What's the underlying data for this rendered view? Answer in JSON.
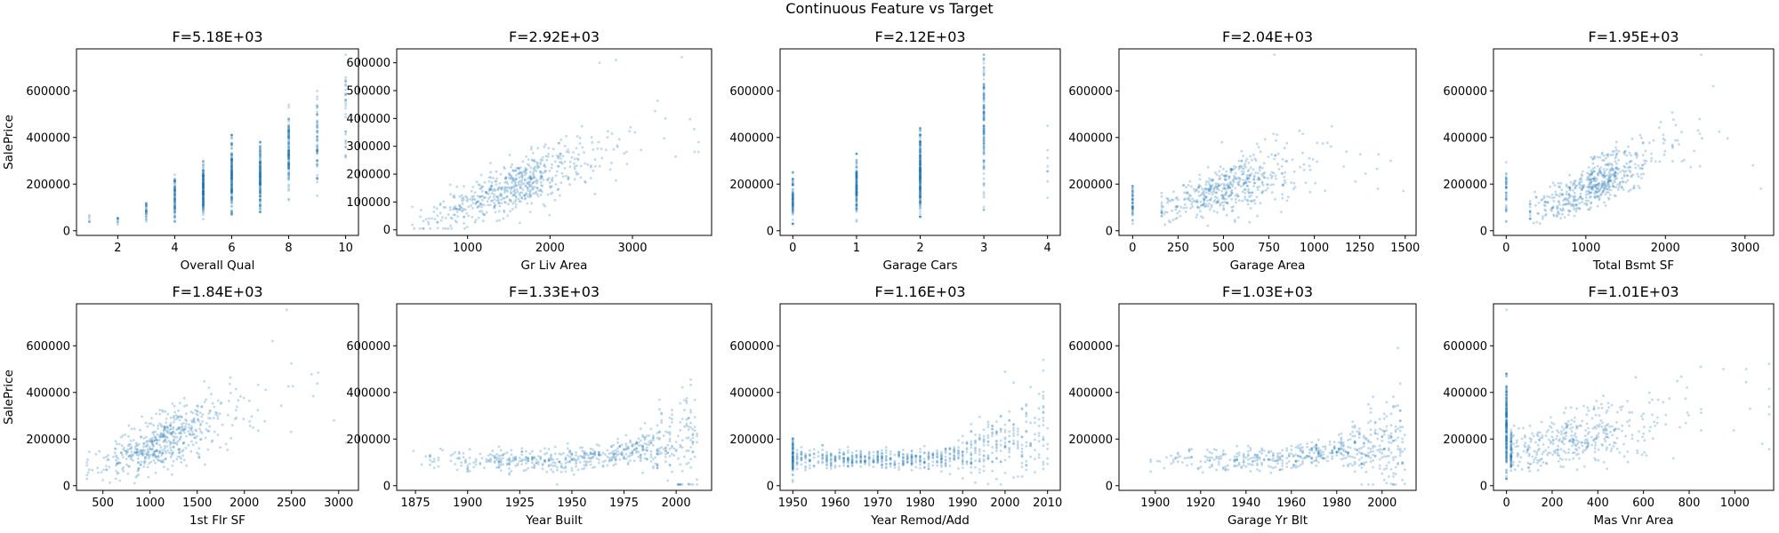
{
  "figure_title": "Continuous Feature vs Target",
  "colors": {
    "points": "#1f77b4",
    "frame": "#000000"
  },
  "chart_data": [
    {
      "type": "scatter",
      "title": "F=5.18E+03",
      "xlabel": "Overall Qual",
      "ylabel": "SalePrice",
      "xlim": [
        0.55,
        10.45
      ],
      "ylim": [
        -20000,
        780000
      ],
      "xticks": [
        2,
        4,
        6,
        8,
        10
      ],
      "xtick_labels": [
        "2",
        "4",
        "6",
        "8",
        "10"
      ],
      "yticks": [
        0,
        200000,
        400000,
        600000
      ],
      "ytick_labels": [
        "0",
        "200000",
        "400000",
        "600000"
      ],
      "kind": "categorical",
      "groups": [
        {
          "x": 1,
          "min": 10000,
          "max": 80000,
          "n": 6
        },
        {
          "x": 2,
          "min": 25000,
          "max": 75000,
          "n": 10
        },
        {
          "x": 3,
          "min": 40000,
          "max": 140000,
          "n": 30
        },
        {
          "x": 4,
          "min": 30000,
          "max": 250000,
          "n": 90
        },
        {
          "x": 5,
          "min": 50000,
          "max": 300000,
          "n": 180
        },
        {
          "x": 6,
          "min": 70000,
          "max": 410000,
          "n": 180
        },
        {
          "x": 7,
          "min": 80000,
          "max": 380000,
          "n": 170
        },
        {
          "x": 8,
          "min": 120000,
          "max": 540000,
          "n": 130
        },
        {
          "x": 9,
          "min": 150000,
          "max": 610000,
          "n": 60
        },
        {
          "x": 10,
          "min": 160000,
          "max": 755000,
          "n": 30
        }
      ]
    },
    {
      "type": "scatter",
      "title": "F=2.92E+03",
      "xlabel": "Gr Liv Area",
      "ylabel": "",
      "xlim": [
        140,
        3960
      ],
      "ylim": [
        -20000,
        650000
      ],
      "xticks": [
        1000,
        2000,
        3000
      ],
      "xtick_labels": [
        "1000",
        "2000",
        "3000"
      ],
      "yticks": [
        0,
        100000,
        200000,
        300000,
        400000,
        500000,
        600000
      ],
      "ytick_labels": [
        "0",
        "100000",
        "200000",
        "300000",
        "400000",
        "500000",
        "600000"
      ],
      "kind": "cloud",
      "a": -20000,
      "b": 112,
      "x_center": 1500,
      "x_spread": 480,
      "x_min": 330,
      "x_max": 3800,
      "y_noise": 45000,
      "n": 600,
      "outliers": [
        [
          3600,
          620000
        ],
        [
          3800,
          280000
        ],
        [
          3400,
          400000
        ],
        [
          2800,
          610000
        ],
        [
          2600,
          600000
        ]
      ]
    },
    {
      "type": "scatter",
      "title": "F=2.12E+03",
      "xlabel": "Garage Cars",
      "ylabel": "",
      "xlim": [
        -0.2,
        4.2
      ],
      "ylim": [
        -20000,
        780000
      ],
      "xticks": [
        0,
        1,
        2,
        3,
        4
      ],
      "xtick_labels": [
        "0",
        "1",
        "2",
        "3",
        "4"
      ],
      "yticks": [
        0,
        200000,
        400000,
        600000
      ],
      "ytick_labels": [
        "0",
        "200000",
        "400000",
        "600000"
      ],
      "kind": "categorical",
      "groups": [
        {
          "x": 0,
          "min": 30000,
          "max": 250000,
          "n": 90
        },
        {
          "x": 1,
          "min": 40000,
          "max": 330000,
          "n": 150
        },
        {
          "x": 2,
          "min": 60000,
          "max": 440000,
          "n": 240
        },
        {
          "x": 3,
          "min": 90000,
          "max": 755000,
          "n": 130
        },
        {
          "x": 4,
          "min": 120000,
          "max": 450000,
          "n": 8
        }
      ]
    },
    {
      "type": "scatter",
      "title": "F=2.04E+03",
      "xlabel": "Garage Area",
      "ylabel": "",
      "xlim": [
        -75,
        1560
      ],
      "ylim": [
        -20000,
        780000
      ],
      "xticks": [
        0,
        250,
        500,
        750,
        1000,
        1250,
        1500
      ],
      "xtick_labels": [
        "0",
        "250",
        "500",
        "750",
        "1000",
        "1250",
        "1500"
      ],
      "yticks": [
        0,
        200000,
        400000,
        600000
      ],
      "ytick_labels": [
        "0",
        "200000",
        "400000",
        "600000"
      ],
      "kind": "cloud",
      "a": 60000,
      "b": 240,
      "x_center": 500,
      "x_spread": 190,
      "x_min": 160,
      "x_max": 1450,
      "y_noise": 55000,
      "n": 500,
      "zero_group": {
        "x": 0,
        "min": 30000,
        "max": 200000,
        "n": 50
      },
      "outliers": [
        [
          1420,
          300000
        ],
        [
          1350,
          180000
        ],
        [
          1490,
          170000
        ],
        [
          780,
          755000
        ]
      ]
    },
    {
      "type": "scatter",
      "title": "F=1.95E+03",
      "xlabel": "Total Bsmt SF",
      "ylabel": "",
      "xlim": [
        -160,
        3360
      ],
      "ylim": [
        -20000,
        780000
      ],
      "xticks": [
        0,
        1000,
        2000,
        3000
      ],
      "xtick_labels": [
        "0",
        "1000",
        "2000",
        "3000"
      ],
      "yticks": [
        0,
        200000,
        400000,
        600000
      ],
      "ytick_labels": [
        "0",
        "200000",
        "400000",
        "600000"
      ],
      "kind": "cloud",
      "a": 20000,
      "b": 160,
      "x_center": 1050,
      "x_spread": 380,
      "x_min": 300,
      "x_max": 3200,
      "y_noise": 50000,
      "n": 550,
      "zero_group": {
        "x": 0,
        "min": 40000,
        "max": 300000,
        "n": 40
      },
      "outliers": [
        [
          3100,
          280000
        ],
        [
          3200,
          180000
        ],
        [
          2450,
          755000
        ],
        [
          2600,
          620000
        ]
      ]
    },
    {
      "type": "scatter",
      "title": "F=1.84E+03",
      "xlabel": "1st Flr SF",
      "ylabel": "SalePrice",
      "xlim": [
        220,
        3210
      ],
      "ylim": [
        -20000,
        780000
      ],
      "xticks": [
        500,
        1000,
        1500,
        2000,
        2500,
        3000
      ],
      "xtick_labels": [
        "500",
        "1000",
        "1500",
        "2000",
        "2500",
        "3000"
      ],
      "yticks": [
        0,
        200000,
        400000,
        600000
      ],
      "ytick_labels": [
        "0",
        "200000",
        "400000",
        "600000"
      ],
      "kind": "cloud",
      "a": 15000,
      "b": 155,
      "x_center": 1100,
      "x_spread": 330,
      "x_min": 330,
      "x_max": 3100,
      "y_noise": 55000,
      "n": 550,
      "outliers": [
        [
          3080,
          185000
        ],
        [
          2950,
          280000
        ],
        [
          2450,
          755000
        ],
        [
          2300,
          620000
        ]
      ]
    },
    {
      "type": "scatter",
      "title": "F=1.33E+03",
      "xlabel": "Year Built",
      "ylabel": "",
      "xlim": [
        1866,
        2017
      ],
      "ylim": [
        -20000,
        780000
      ],
      "xticks": [
        1875,
        1900,
        1925,
        1950,
        1975,
        2000
      ],
      "xtick_labels": [
        "1875",
        "1900",
        "1925",
        "1950",
        "1975",
        "2000"
      ],
      "yticks": [
        0,
        200000,
        400000,
        600000
      ],
      "ytick_labels": [
        "0",
        "200000",
        "400000",
        "600000"
      ],
      "kind": "year",
      "x_min": 1872,
      "x_max": 2010,
      "n": 600
    },
    {
      "type": "scatter",
      "title": "F=1.16E+03",
      "xlabel": "Year Remod/Add",
      "ylabel": "",
      "xlim": [
        1947,
        2013
      ],
      "ylim": [
        -20000,
        780000
      ],
      "xticks": [
        1950,
        1960,
        1970,
        1980,
        1990,
        2000,
        2010
      ],
      "xtick_labels": [
        "1950",
        "1960",
        "1970",
        "1980",
        "1990",
        "2000",
        "2010"
      ],
      "yticks": [
        0,
        200000,
        400000,
        600000
      ],
      "ytick_labels": [
        "0",
        "200000",
        "400000",
        "600000"
      ],
      "kind": "remod",
      "x_min": 1950,
      "x_max": 2010,
      "n": 700
    },
    {
      "type": "scatter",
      "title": "F=1.03E+03",
      "xlabel": "Garage Yr Blt",
      "ylabel": "",
      "xlim": [
        1884,
        2015
      ],
      "ylim": [
        -20000,
        780000
      ],
      "xticks": [
        1900,
        1920,
        1940,
        1960,
        1980,
        2000
      ],
      "xtick_labels": [
        "1900",
        "1920",
        "1940",
        "1960",
        "1980",
        "2000"
      ],
      "yticks": [
        0,
        200000,
        400000,
        600000
      ],
      "ytick_labels": [
        "0",
        "200000",
        "400000",
        "600000"
      ],
      "kind": "year",
      "x_min": 1895,
      "x_max": 2010,
      "n": 550
    },
    {
      "type": "scatter",
      "title": "F=1.01E+03",
      "xlabel": "Mas Vnr Area",
      "ylabel": "",
      "xlim": [
        -57,
        1170
      ],
      "ylim": [
        -20000,
        780000
      ],
      "xticks": [
        0,
        200,
        400,
        600,
        800,
        1000
      ],
      "xtick_labels": [
        "0",
        "200",
        "400",
        "600",
        "800",
        "1000"
      ],
      "yticks": [
        0,
        200000,
        400000,
        600000
      ],
      "ytick_labels": [
        "0",
        "200000",
        "400000",
        "600000"
      ],
      "kind": "cloud",
      "a": 140000,
      "b": 200,
      "x_center": 250,
      "x_spread": 220,
      "x_min": 20,
      "x_max": 1150,
      "y_noise": 60000,
      "n": 450,
      "zero_group": {
        "x": 0,
        "min": 30000,
        "max": 480000,
        "n": 200
      },
      "outliers": [
        [
          0,
          755000
        ],
        [
          1120,
          180000
        ],
        [
          1050,
          500000
        ],
        [
          950,
          500000
        ]
      ]
    }
  ]
}
